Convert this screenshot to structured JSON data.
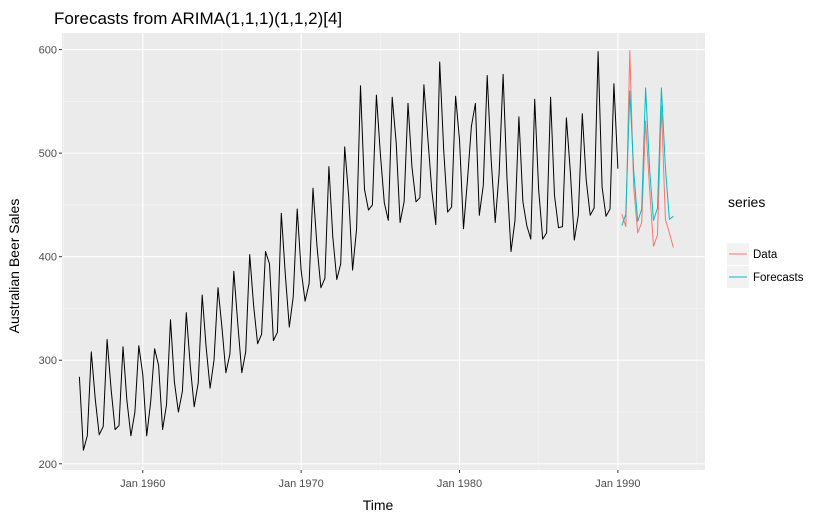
{
  "chart_data": {
    "type": "line",
    "title": "Forecasts from ARIMA(1,1,1)(1,1,2)[4]",
    "xlabel": "Time",
    "ylabel": "Australian Beer Sales",
    "xlim": [
      1954.9,
      1995.5
    ],
    "ylim": [
      194,
      616
    ],
    "x_ticks": [
      {
        "value": 1960,
        "label": "Jan 1960"
      },
      {
        "value": 1970,
        "label": "Jan 1970"
      },
      {
        "value": 1980,
        "label": "Jan 1980"
      },
      {
        "value": 1990,
        "label": "Jan 1990"
      }
    ],
    "y_ticks": [
      200,
      300,
      400,
      500,
      600
    ],
    "grid": true,
    "legend": {
      "title": "series",
      "position": "right",
      "entries": [
        {
          "name": "Data",
          "color": "#F8766D"
        },
        {
          "name": "Forecasts",
          "color": "#00BFC4"
        }
      ]
    },
    "series": [
      {
        "name": "",
        "color": "#000000",
        "start": 1956.0,
        "step": 0.25,
        "values": [
          284,
          213,
          227,
          308,
          262,
          228,
          236,
          320,
          272,
          233,
          237,
          313,
          261,
          227,
          250,
          314,
          286,
          227,
          260,
          311,
          295,
          233,
          257,
          339,
          279,
          250,
          270,
          346,
          294,
          255,
          278,
          363,
          313,
          273,
          300,
          370,
          331,
          288,
          306,
          386,
          335,
          288,
          308,
          402,
          353,
          316,
          325,
          405,
          393,
          319,
          327,
          442,
          383,
          332,
          361,
          446,
          387,
          357,
          374,
          466,
          410,
          370,
          379,
          487,
          419,
          378,
          393,
          506,
          458,
          387,
          427,
          565,
          465,
          445,
          450,
          556,
          500,
          452,
          435,
          554,
          510,
          433,
          453,
          548,
          486,
          453,
          457,
          566,
          515,
          464,
          431,
          588,
          503,
          443,
          448,
          555,
          513,
          427,
          473,
          526,
          548,
          440,
          469,
          575,
          493,
          433,
          480,
          576,
          475,
          405,
          435,
          535,
          453,
          430,
          417,
          552,
          464,
          417,
          423,
          554,
          459,
          428,
          429,
          534,
          481,
          416,
          440,
          538,
          474,
          440,
          447,
          598,
          467,
          439,
          446,
          567,
          485
        ]
      },
      {
        "name": "Data",
        "color": "#F8766D",
        "start": 1990.25,
        "step": 0.25,
        "values": [
          441,
          429,
          599,
          467,
          423,
          433,
          531,
          465,
          410,
          421,
          546,
          436,
          423,
          409
        ]
      },
      {
        "name": "Forecasts",
        "color": "#00BFC4",
        "start": 1990.25,
        "step": 0.25,
        "values": [
          430,
          441,
          560,
          483,
          434,
          446,
          563,
          485,
          435,
          447,
          563,
          486,
          436,
          439
        ]
      }
    ]
  }
}
